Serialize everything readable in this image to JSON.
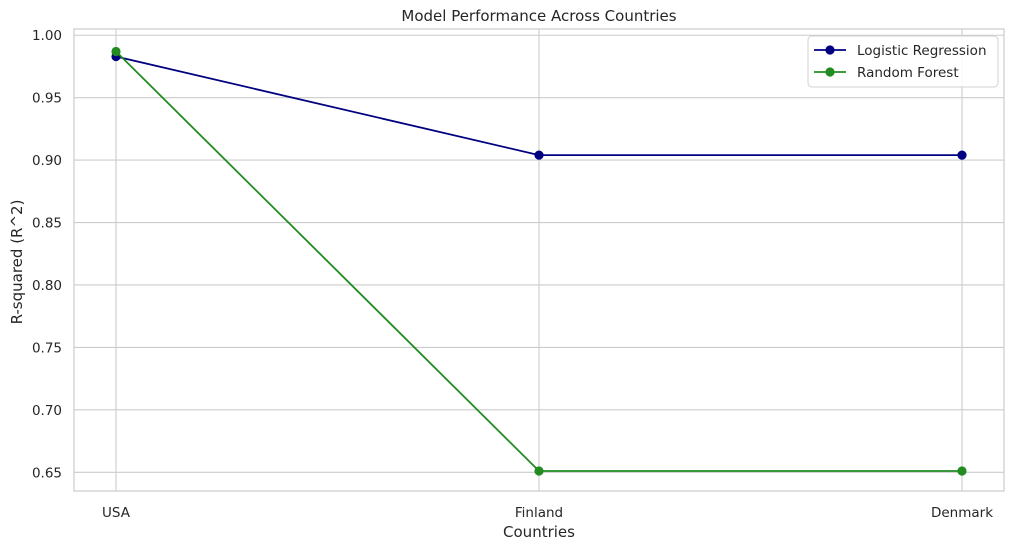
{
  "chart_data": {
    "type": "line",
    "title": "Model Performance Across Countries",
    "xlabel": "Countries",
    "ylabel": "R-squared (R^2)",
    "categories": [
      "USA",
      "Finland",
      "Denmark"
    ],
    "ylim": [
      0.635,
      1.005
    ],
    "yticks": [
      0.65,
      0.7,
      0.75,
      0.8,
      0.85,
      0.9,
      0.95,
      1.0
    ],
    "ytick_labels": [
      "0.65",
      "0.70",
      "0.75",
      "0.80",
      "0.85",
      "0.90",
      "0.95",
      "1.00"
    ],
    "grid": true,
    "legend_position": "top-right",
    "series": [
      {
        "name": "Logistic Regression",
        "values": [
          0.983,
          0.904,
          0.904
        ],
        "color": "#000080",
        "marker": "circle"
      },
      {
        "name": "Random Forest",
        "values": [
          0.987,
          0.651,
          0.651
        ],
        "color": "#228b22",
        "marker": "circle"
      }
    ]
  }
}
